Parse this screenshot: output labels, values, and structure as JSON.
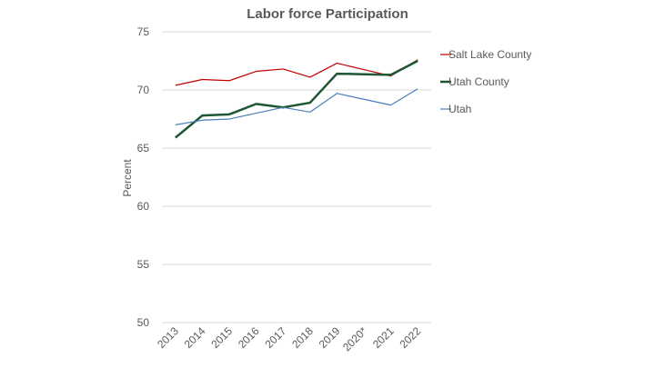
{
  "chart_data": {
    "type": "line",
    "title": "Labor force Participation",
    "xlabel": "",
    "ylabel": "Percent",
    "categories": [
      "2013",
      "2014",
      "2015",
      "2016",
      "2017",
      "2018",
      "2019",
      "2020*",
      "2021",
      "2022"
    ],
    "ylim": [
      50,
      75
    ],
    "yticks": [
      50,
      55,
      60,
      65,
      70,
      75
    ],
    "grid": true,
    "legend_position": "right",
    "series": [
      {
        "name": "Salt Lake County",
        "color": "#c00000",
        "values": [
          70.4,
          70.9,
          70.8,
          71.6,
          71.8,
          71.1,
          72.3,
          null,
          71.2,
          72.6
        ]
      },
      {
        "name": "Utah County",
        "color": "#1e5631",
        "values": [
          65.9,
          67.8,
          67.9,
          68.8,
          68.5,
          68.9,
          71.4,
          null,
          71.3,
          72.5
        ]
      },
      {
        "name": "Utah",
        "color": "#4a7ebb",
        "values": [
          67.0,
          67.4,
          67.5,
          68.0,
          68.5,
          68.1,
          69.7,
          null,
          68.7,
          70.1
        ]
      }
    ]
  }
}
